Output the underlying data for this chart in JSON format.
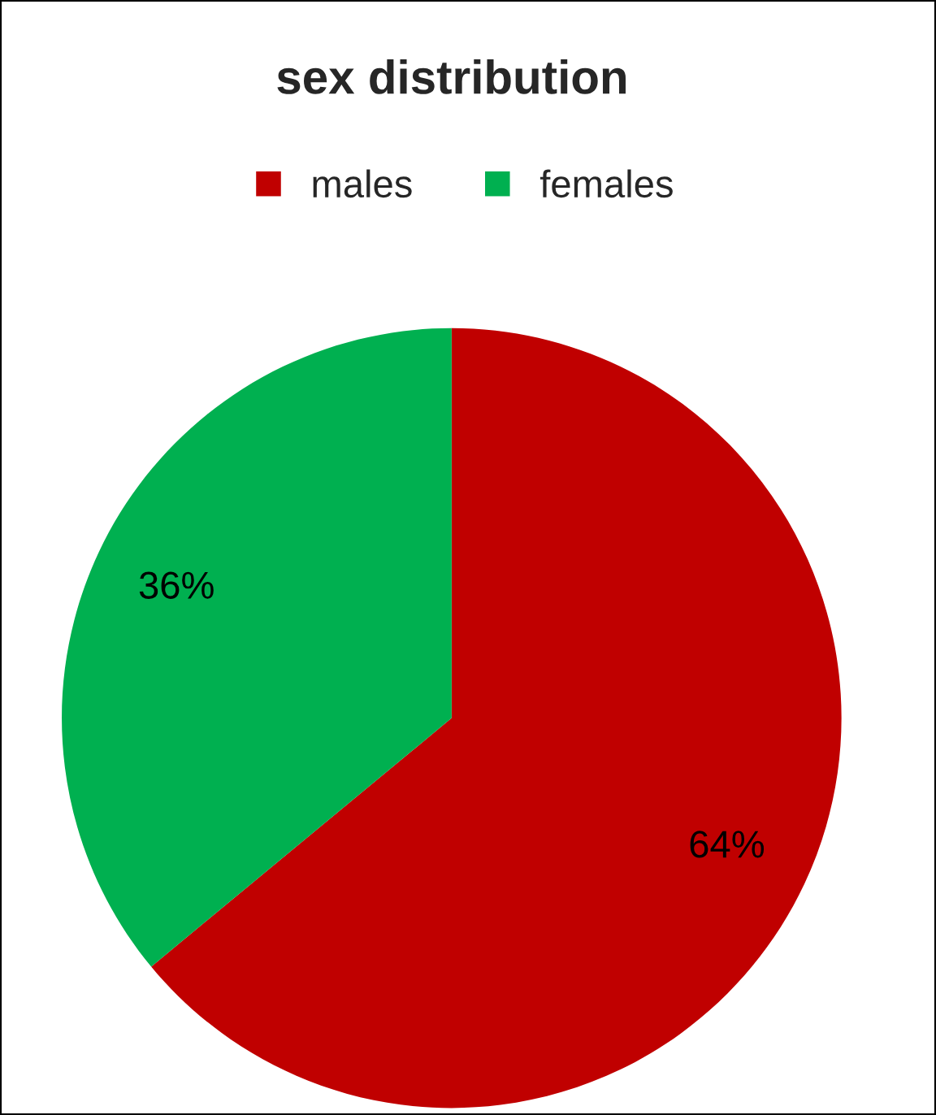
{
  "chart_data": {
    "type": "pie",
    "title": "sex distribution",
    "categories": [
      "males",
      "females"
    ],
    "values": [
      64,
      36
    ],
    "colors": [
      "#c00000",
      "#00b050"
    ],
    "value_labels": [
      "64%",
      "36%"
    ],
    "legend": "top"
  }
}
